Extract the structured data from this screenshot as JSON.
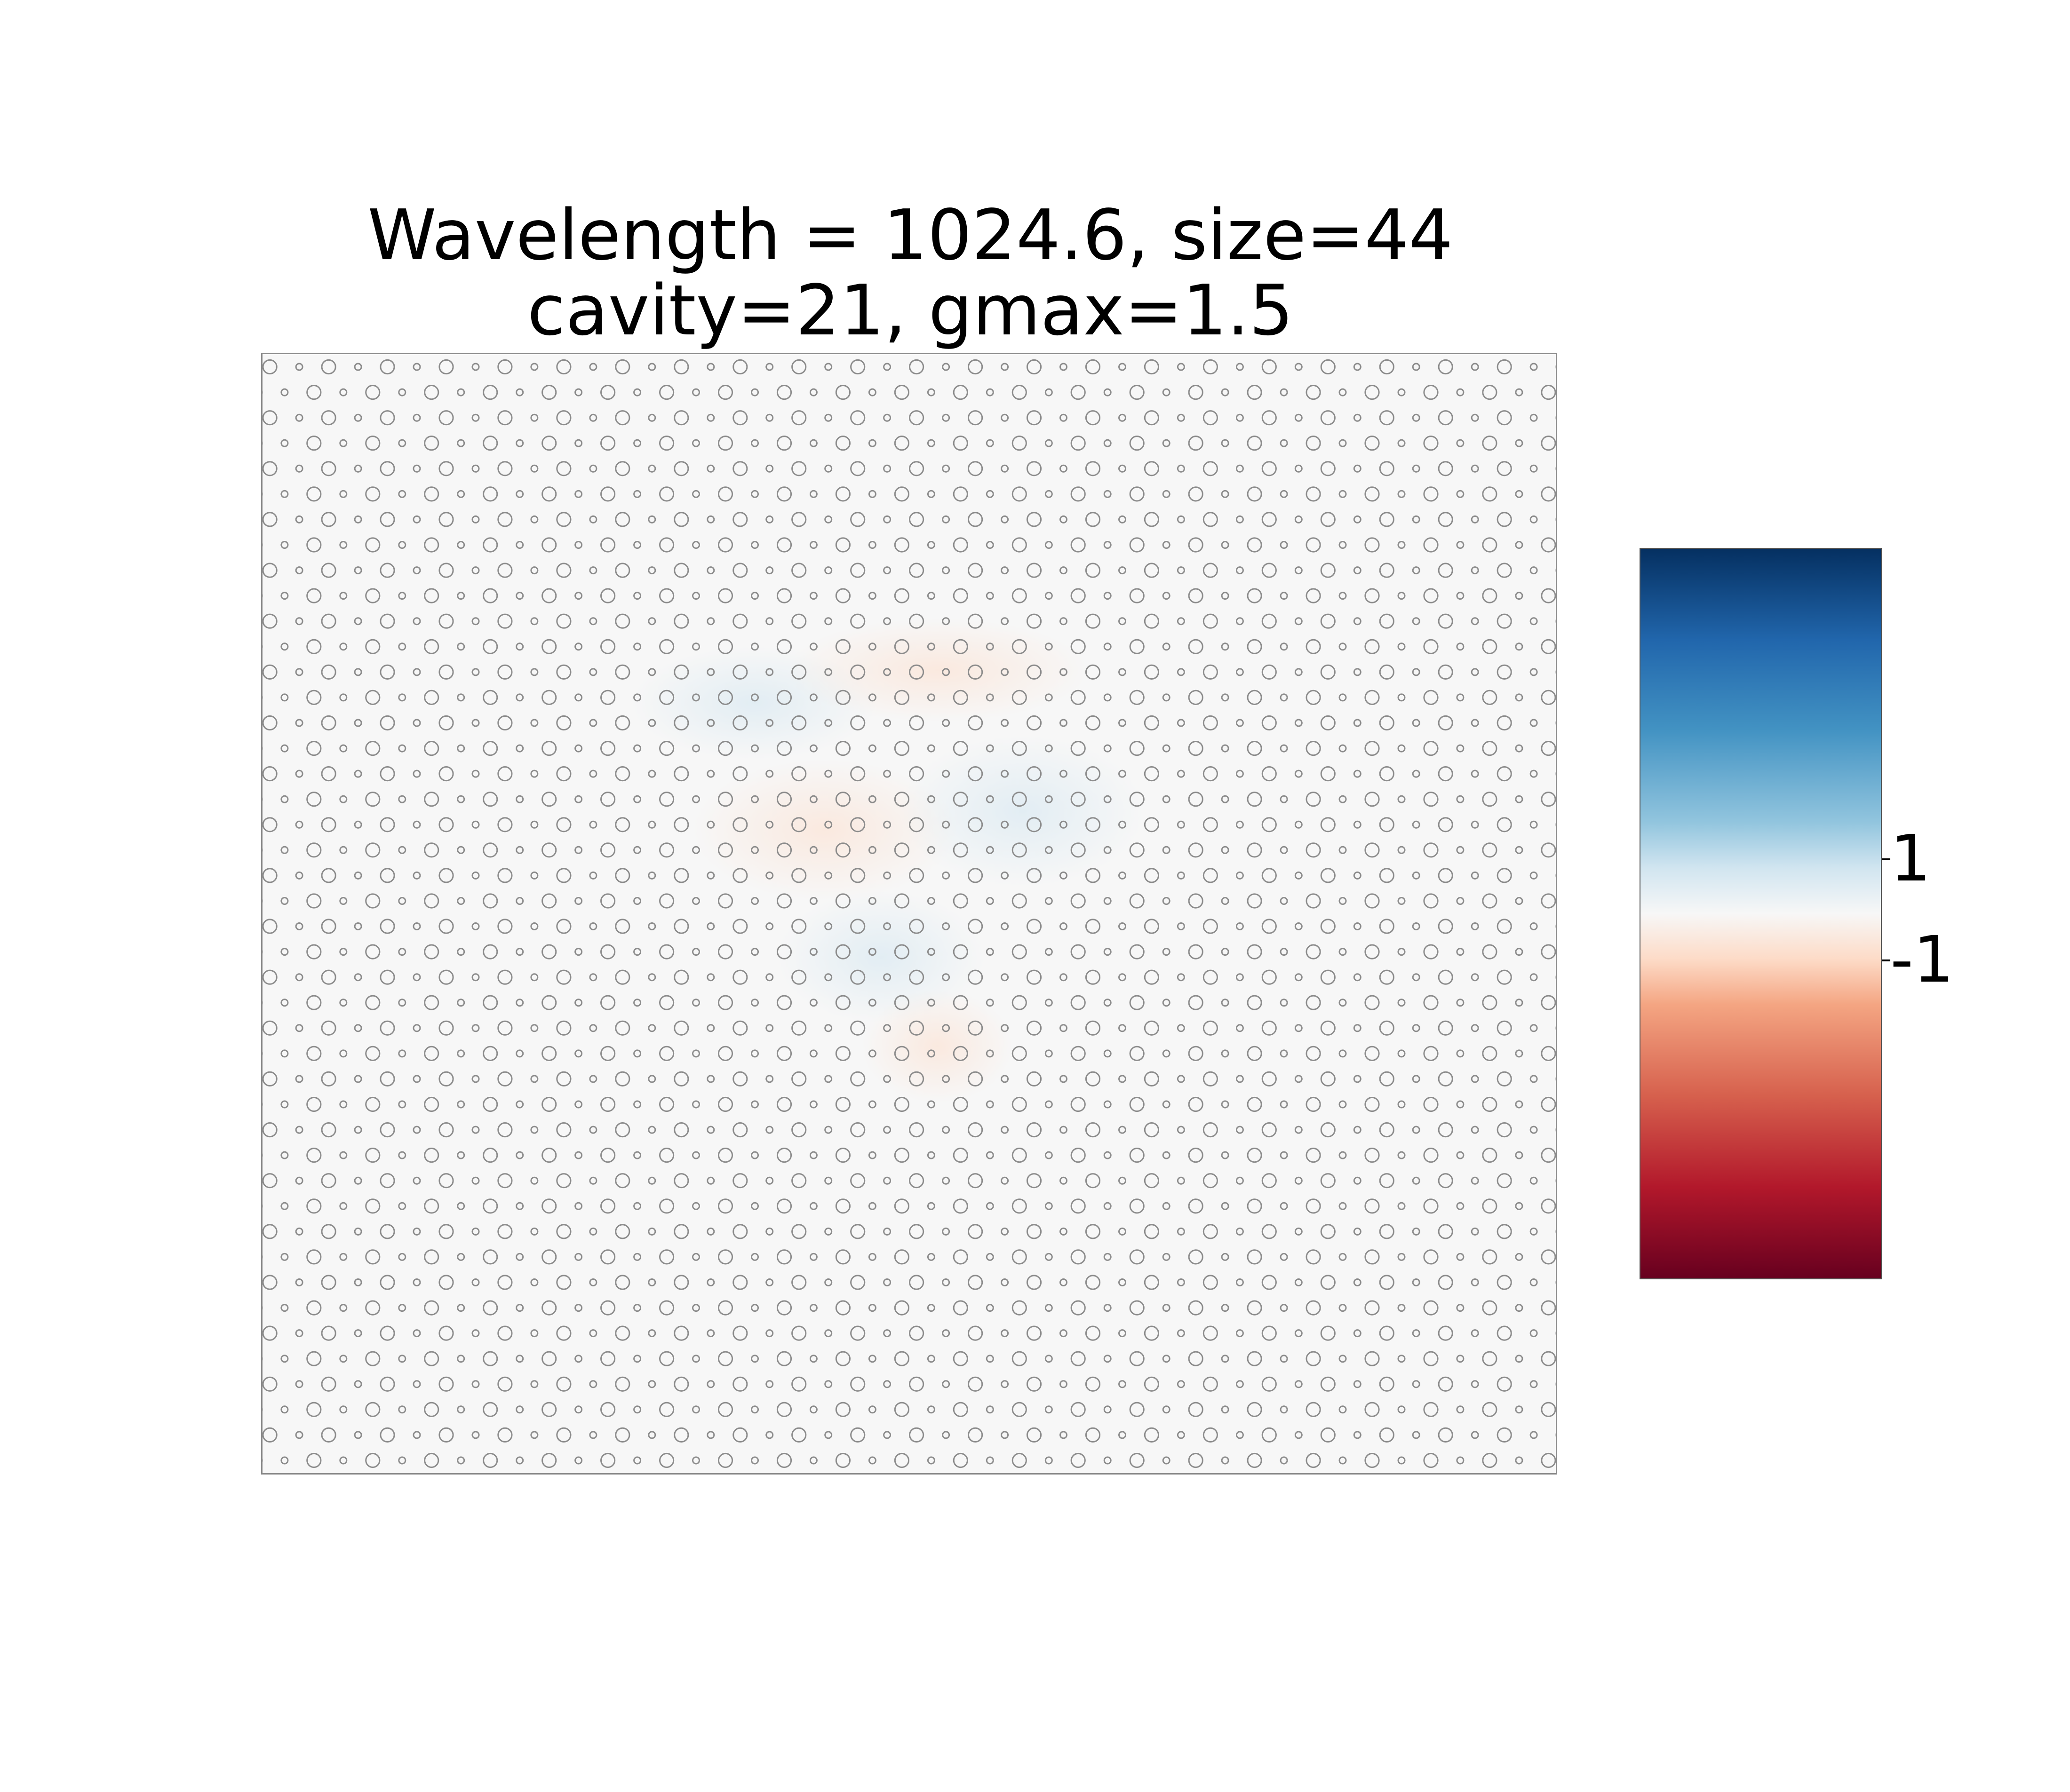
{
  "chart_data": {
    "type": "heatmap",
    "title_lines": [
      "Wavelength = 1024.6, size=44",
      "cavity=21, gmax=1.5"
    ],
    "xlabel": "",
    "ylabel": "",
    "grid": false,
    "colormap": "RdBu",
    "colors": {
      "high": "#053061",
      "mid": "#f7f7f7",
      "low": "#67001f",
      "hole_outline": "#8c8c8c",
      "frame": "#8a8a8a"
    },
    "colorbar": {
      "orientation": "vertical",
      "placement": "right",
      "ticks": [
        {
          "value": 1,
          "label": "1"
        },
        {
          "value": -1,
          "label": "-1"
        }
      ],
      "range": [
        -3.2,
        3.2
      ]
    },
    "lattice": {
      "rows": 44,
      "columns": 44,
      "pattern": "hexagonal",
      "hole_sizes": [
        "large",
        "small"
      ],
      "cavity_region": "center"
    },
    "field_visibility": "faint"
  }
}
